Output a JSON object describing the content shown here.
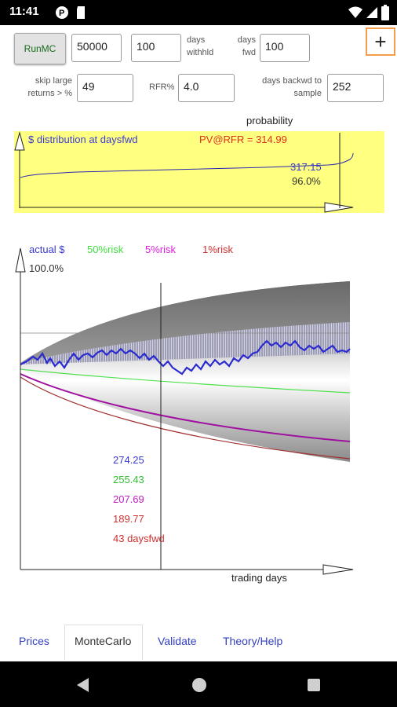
{
  "status": {
    "time": "11:41"
  },
  "controls": {
    "run_label": "RunMC",
    "sims_value": "50000",
    "withheld_value": "100",
    "withheld_label_1": "days",
    "withheld_label_2": "withhld",
    "fwd_label_1": "days",
    "fwd_label_2": "fwd",
    "fwd_value": "100",
    "skip_label_1": "skip large",
    "skip_label_2": "returns > %",
    "skip_value": "49",
    "rfr_label": "RFR%",
    "rfr_value": "4.0",
    "backwd_label_1": "days backwd to",
    "backwd_label_2": "sample",
    "backwd_value": "252",
    "plus_label": "+"
  },
  "prob_chart": {
    "header": "probability",
    "title": "$ distribution at daysfwd",
    "pv_label": "PV@RFR = 314.99",
    "value_label": "317.15",
    "prob_label": "96.0%"
  },
  "mc_chart": {
    "legend": [
      {
        "label": "actual $",
        "color": "#3a3ad0"
      },
      {
        "label": "50%risk",
        "color": "#40e040"
      },
      {
        "label": "5%risk",
        "color": "#e020e0"
      },
      {
        "label": "1%risk",
        "color": "#d03030"
      }
    ],
    "percent_label": "100.0%",
    "values": [
      {
        "label": "274.25",
        "color": "#3a3ad0"
      },
      {
        "label": "255.43",
        "color": "#30c030"
      },
      {
        "label": "207.69",
        "color": "#c020c0"
      },
      {
        "label": "189.77",
        "color": "#d03030"
      },
      {
        "label": "43 daysfwd",
        "color": "#d03030"
      }
    ],
    "xlabel": "trading days"
  },
  "tabs": [
    {
      "label": "Prices",
      "active": false
    },
    {
      "label": "MonteCarlo",
      "active": true
    },
    {
      "label": "Validate",
      "active": false
    },
    {
      "label": "Theory/Help",
      "active": false
    }
  ],
  "colors": {
    "chart_bg": "#ffff80",
    "accent": "#f39c4a",
    "tab_text": "#3340c0"
  }
}
